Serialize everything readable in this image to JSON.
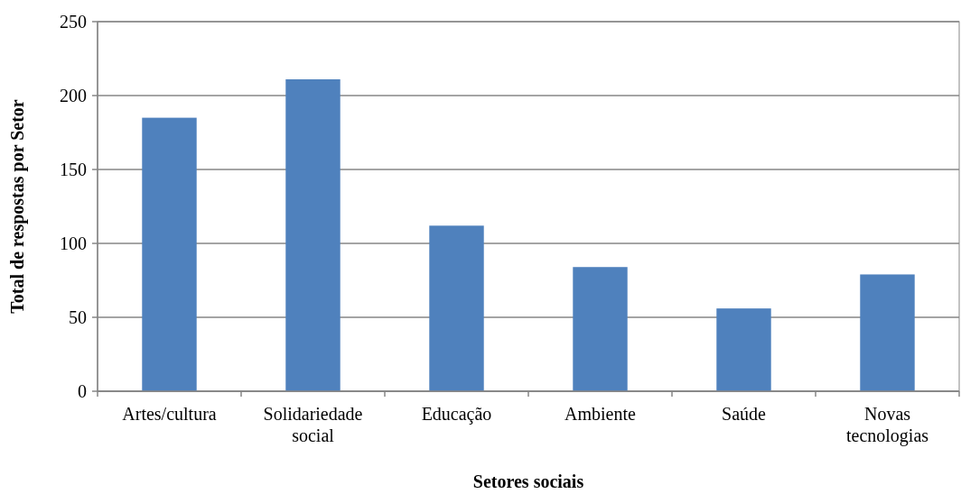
{
  "chart_data": {
    "type": "bar",
    "xlabel": "Setores sociais",
    "ylabel": "Total de respostas por Setor",
    "categories": [
      "Artes/cultura",
      "Solidariedade social",
      "Educação",
      "Ambiente",
      "Saúde",
      "Novas tecnologias"
    ],
    "values": [
      185,
      211,
      112,
      84,
      56,
      79
    ],
    "color": "#4f81bd",
    "ylim": [
      0,
      250
    ],
    "yticks": [
      0,
      50,
      100,
      150,
      200,
      250
    ],
    "grid": "y"
  }
}
